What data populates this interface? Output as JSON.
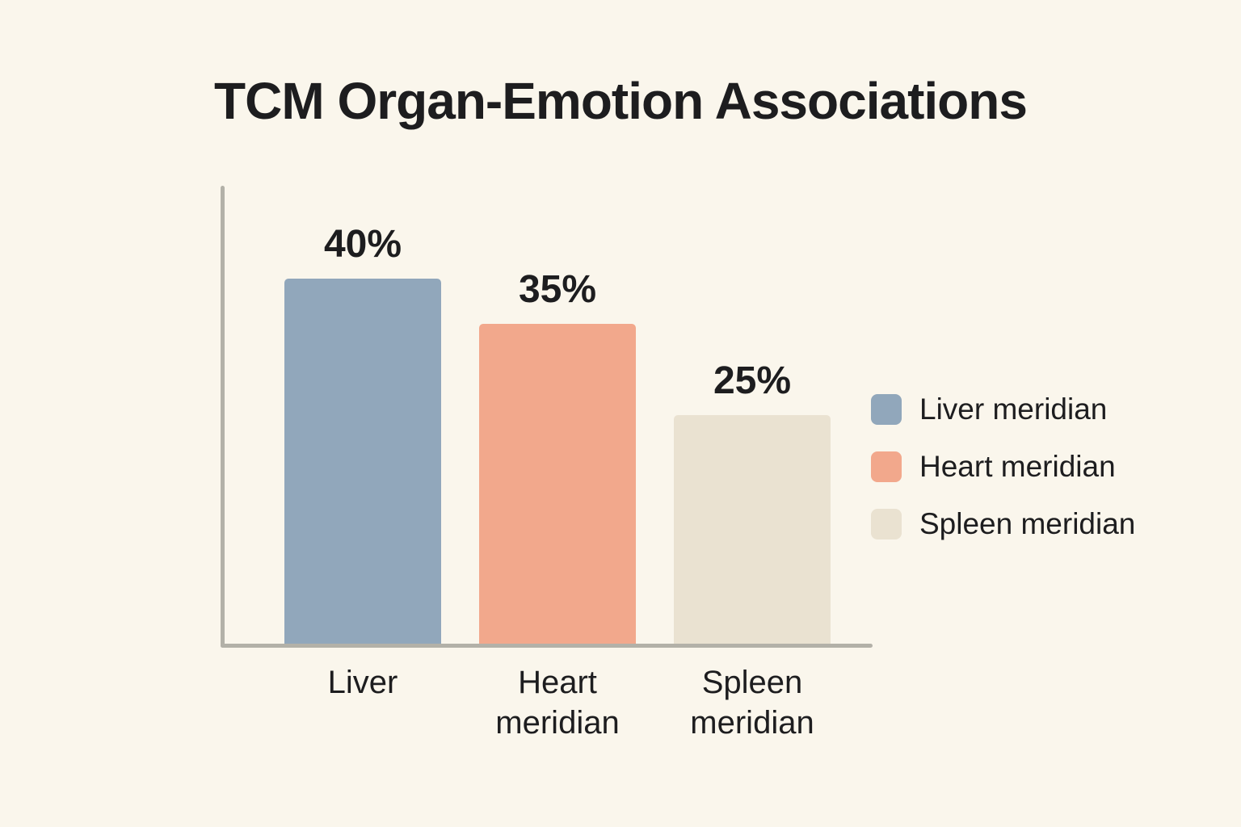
{
  "page": {
    "background_color": "#faf6ec",
    "text_color": "#1d1d1f",
    "axis_color": "#b3b1a8"
  },
  "chart_data": {
    "type": "bar",
    "title": "TCM Organ-Emotion Associations",
    "categories": [
      "Liver",
      "Heart meridian",
      "Spleen meridian"
    ],
    "values": [
      40,
      35,
      25
    ],
    "value_labels": [
      "40%",
      "35%",
      "25%"
    ],
    "bar_colors": [
      "#91a7bb",
      "#f2a88c",
      "#eae2d1"
    ],
    "xlabel": "",
    "ylabel": "",
    "ylim": [
      0,
      50
    ],
    "grid": false,
    "legend_position": "right",
    "legend": [
      {
        "label": "Liver meridian",
        "color": "#91a7bb"
      },
      {
        "label": "Heart meridian",
        "color": "#f2a88c"
      },
      {
        "label": "Spleen meridian",
        "color": "#eae2d1"
      }
    ]
  }
}
